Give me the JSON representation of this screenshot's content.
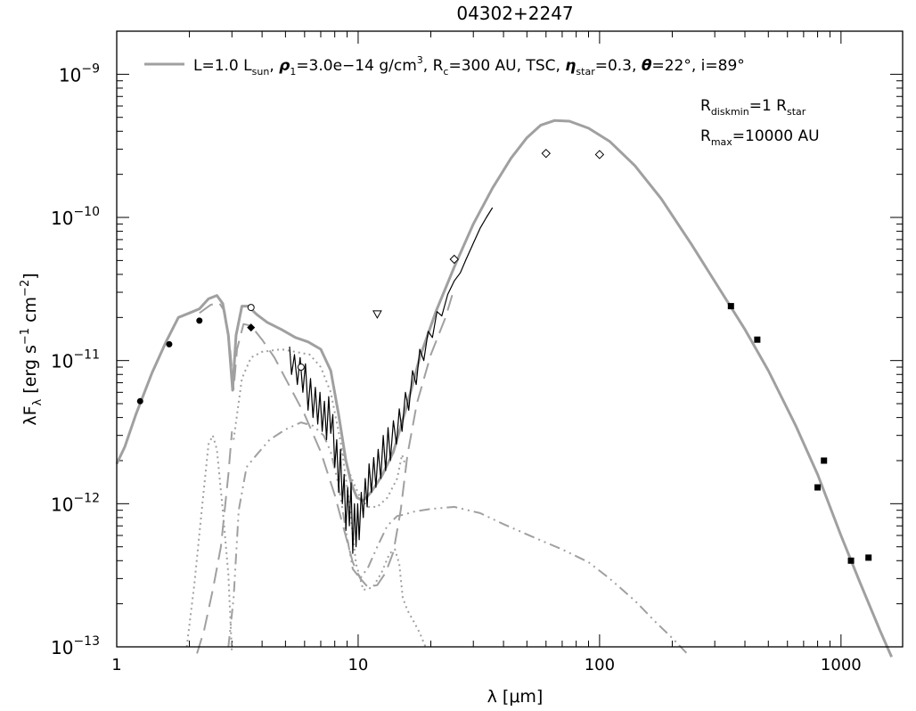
{
  "chart_data": {
    "type": "line",
    "title": "04302+2247",
    "xlabel": "λ [μm]",
    "ylabel": {
      "base": "λF",
      "sub": "λ",
      "rest": " [erg s",
      "sup1": "−1",
      "mid": " cm",
      "sup2": "−2",
      "end": "]"
    },
    "x_scale": "log",
    "y_scale": "log",
    "xlim": [
      1,
      1800
    ],
    "ylim": [
      1e-13,
      2e-09
    ],
    "x_ticks": [
      {
        "value": 1,
        "label": "1"
      },
      {
        "value": 10,
        "label": "10"
      },
      {
        "value": 100,
        "label": "100"
      },
      {
        "value": 1000,
        "label": "1000"
      }
    ],
    "y_ticks": [
      {
        "value": 1e-13,
        "mantissa": "10",
        "exp": "−13"
      },
      {
        "value": 1e-12,
        "mantissa": "10",
        "exp": "−12"
      },
      {
        "value": 1e-11,
        "mantissa": "10",
        "exp": "−11"
      },
      {
        "value": 1e-10,
        "mantissa": "10",
        "exp": "−10"
      },
      {
        "value": 1e-09,
        "mantissa": "10",
        "exp": "−9"
      }
    ],
    "legend": {
      "position": "top",
      "line_color": "#a0a0a0",
      "runs": [
        {
          "t": "L=1.0 L",
          "s": ""
        },
        {
          "t": "sun",
          "s": "sub"
        },
        {
          "t": ", ",
          "s": ""
        },
        {
          "t": "ρ",
          "s": "bi"
        },
        {
          "t": "1",
          "s": "sub"
        },
        {
          "t": "=3.0e−14 g/cm",
          "s": ""
        },
        {
          "t": "3",
          "s": "sup"
        },
        {
          "t": ", R",
          "s": ""
        },
        {
          "t": "c",
          "s": "sub"
        },
        {
          "t": "=300 AU, TSC, ",
          "s": ""
        },
        {
          "t": "η",
          "s": "bi"
        },
        {
          "t": "star",
          "s": "sub"
        },
        {
          "t": "=0.3, ",
          "s": ""
        },
        {
          "t": "θ",
          "s": "bi"
        },
        {
          "t": "=22°, i=89°",
          "s": ""
        }
      ]
    },
    "annotations": [
      {
        "base": "R",
        "sub": "diskmin",
        "rest": "=1 R",
        "sub2": "star"
      },
      {
        "base": "R",
        "sub": "max",
        "rest": "=10000 AU",
        "sub2": ""
      }
    ],
    "series": [
      {
        "style": "total-model",
        "color": "#a0a0a0",
        "points": [
          [
            1,
            1.9e-12
          ],
          [
            1.08,
            2.5e-12
          ],
          [
            1.2,
            4.2e-12
          ],
          [
            1.4,
            8.2e-12
          ],
          [
            1.6,
            1.35e-11
          ],
          [
            1.8,
            2e-11
          ],
          [
            2.0,
            2.15e-11
          ],
          [
            2.2,
            2.3e-11
          ],
          [
            2.4,
            2.7e-11
          ],
          [
            2.6,
            2.85e-11
          ],
          [
            2.75,
            2.5e-11
          ],
          [
            2.9,
            1.5e-11
          ],
          [
            3.02,
            6.2e-12
          ],
          [
            3.12,
            1.5e-11
          ],
          [
            3.3,
            2.4e-11
          ],
          [
            3.5,
            2.4e-11
          ],
          [
            3.8,
            2.1e-11
          ],
          [
            4.2,
            1.85e-11
          ],
          [
            4.8,
            1.65e-11
          ],
          [
            5.5,
            1.45e-11
          ],
          [
            6.2,
            1.35e-11
          ],
          [
            7.0,
            1.2e-11
          ],
          [
            7.7,
            8.5e-12
          ],
          [
            8.3,
            4.2e-12
          ],
          [
            8.9,
            2e-12
          ],
          [
            9.4,
            1.35e-12
          ],
          [
            9.9,
            1.1e-12
          ],
          [
            10.5,
            1.05e-12
          ],
          [
            11.3,
            1.2e-12
          ],
          [
            12.5,
            1.55e-12
          ],
          [
            14,
            2.3e-12
          ],
          [
            16,
            5e-12
          ],
          [
            18,
            1.05e-11
          ],
          [
            21,
            2.2e-11
          ],
          [
            25,
            4.5e-11
          ],
          [
            30,
            9e-11
          ],
          [
            36,
            1.6e-10
          ],
          [
            43,
            2.6e-10
          ],
          [
            50,
            3.6e-10
          ],
          [
            57,
            4.4e-10
          ],
          [
            65,
            4.75e-10
          ],
          [
            75,
            4.7e-10
          ],
          [
            90,
            4.2e-10
          ],
          [
            110,
            3.4e-10
          ],
          [
            140,
            2.3e-10
          ],
          [
            180,
            1.35e-10
          ],
          [
            240,
            6.5e-11
          ],
          [
            320,
            3e-11
          ],
          [
            400,
            1.65e-11
          ],
          [
            500,
            8.5e-12
          ],
          [
            650,
            3.5e-12
          ],
          [
            800,
            1.6e-12
          ],
          [
            1000,
            6e-13
          ],
          [
            1200,
            2.8e-13
          ],
          [
            1450,
            1.3e-13
          ],
          [
            1620,
            8.5e-14
          ]
        ]
      },
      {
        "style": "dashed",
        "color": "#a0a0a0",
        "points": [
          [
            2.2,
            2.15e-11
          ],
          [
            2.45,
            2.45e-11
          ],
          [
            2.65,
            2.55e-11
          ],
          [
            2.8,
            2.2e-11
          ],
          [
            2.95,
            1.2e-11
          ],
          [
            3.05,
            6.3e-12
          ],
          [
            3.15,
            1.2e-11
          ],
          [
            3.35,
            1.8e-11
          ],
          [
            3.6,
            1.75e-11
          ],
          [
            4.0,
            1.4e-11
          ],
          [
            4.5,
            1.05e-11
          ],
          [
            5.0,
            7.5e-12
          ],
          [
            6.0,
            4.2e-12
          ],
          [
            7.0,
            2.3e-12
          ],
          [
            8.0,
            1.15e-12
          ],
          [
            9.0,
            5.5e-13
          ],
          [
            9.5,
            3.9e-13
          ],
          [
            10.2,
            3e-13
          ],
          [
            11.0,
            2.6e-13
          ],
          [
            12.0,
            2.7e-13
          ],
          [
            13.0,
            3.3e-13
          ],
          [
            14.0,
            4.6e-13
          ],
          [
            15,
            9e-13
          ],
          [
            16,
            2.2e-12
          ],
          [
            17.5,
            5e-12
          ],
          [
            20,
            1.1e-11
          ],
          [
            23,
            2e-11
          ],
          [
            25,
            3.2e-11
          ]
        ]
      },
      {
        "style": "dashed",
        "color": "#a0a0a0",
        "points": [
          [
            2.15,
            9e-14
          ],
          [
            2.3,
            1.3e-13
          ],
          [
            2.5,
            2.5e-13
          ],
          [
            2.7,
            5e-13
          ],
          [
            2.9,
            1.6e-12
          ],
          [
            3.0,
            3.2e-12
          ]
        ]
      },
      {
        "style": "dotted",
        "color": "#a0a0a0",
        "points": [
          [
            1.95,
            1e-13
          ],
          [
            2.1,
            2.8e-13
          ],
          [
            2.25,
            9e-13
          ],
          [
            2.4,
            2.6e-12
          ],
          [
            2.5,
            3e-12
          ],
          [
            2.6,
            2.4e-12
          ],
          [
            2.75,
            9e-13
          ],
          [
            2.9,
            3.2e-13
          ],
          [
            3.0,
            9e-14
          ]
        ]
      },
      {
        "style": "dotted",
        "color": "#a0a0a0",
        "points": [
          [
            3.05,
            2.8e-12
          ],
          [
            3.3,
            7.5e-12
          ],
          [
            3.6,
            1.05e-11
          ],
          [
            4.0,
            1.15e-11
          ],
          [
            4.8,
            1.2e-11
          ],
          [
            5.5,
            1.15e-11
          ],
          [
            6.3,
            1.1e-11
          ],
          [
            7.0,
            9e-12
          ],
          [
            7.7,
            6e-12
          ],
          [
            8.5,
            2.6e-12
          ],
          [
            9.2,
            1e-12
          ],
          [
            9.8,
            3.8e-13
          ],
          [
            10.5,
            2.5e-13
          ],
          [
            11.5,
            2.6e-13
          ],
          [
            12.5,
            3.3e-13
          ],
          [
            13.5,
            4.5e-13
          ],
          [
            14.2,
            4.8e-13
          ],
          [
            14.8,
            3.8e-13
          ],
          [
            15.3,
            2.2e-13
          ],
          [
            16,
            1.8e-13
          ],
          [
            17,
            1.5e-13
          ],
          [
            18,
            1.25e-13
          ],
          [
            19,
            1e-13
          ]
        ]
      },
      {
        "style": "dotted",
        "color": "#a0a0a0",
        "points": [
          [
            8.5,
            2.4e-12
          ],
          [
            9.4,
            1.5e-12
          ],
          [
            10.2,
            1.1e-12
          ],
          [
            11,
            9.5e-13
          ],
          [
            12,
            9.5e-13
          ],
          [
            13.2,
            1.1e-12
          ],
          [
            14.5,
            1.5e-12
          ],
          [
            15.2,
            2.2e-12
          ],
          [
            15.8,
            1.8e-12
          ]
        ]
      },
      {
        "style": "dashdotdot",
        "color": "#a0a0a0",
        "points": [
          [
            2.9,
            1e-13
          ],
          [
            3.05,
            2.2e-13
          ],
          [
            3.2,
            9e-13
          ],
          [
            3.45,
            1.8e-12
          ],
          [
            3.8,
            2.2e-12
          ],
          [
            4.3,
            2.8e-12
          ],
          [
            5.0,
            3.3e-12
          ],
          [
            5.8,
            3.7e-12
          ],
          [
            6.5,
            3.5e-12
          ],
          [
            7.2,
            3e-12
          ],
          [
            7.7,
            2.3e-12
          ],
          [
            8.3,
            1.35e-12
          ],
          [
            8.9,
            6.5e-13
          ],
          [
            9.5,
            3.5e-13
          ],
          [
            10.2,
            3e-13
          ],
          [
            11,
            3.6e-13
          ],
          [
            12,
            5e-13
          ],
          [
            13.2,
            7e-13
          ],
          [
            14.5,
            8.2e-13
          ],
          [
            15.5,
            8.4e-13
          ],
          [
            17,
            8.8e-13
          ],
          [
            20,
            9.2e-13
          ],
          [
            25,
            9.5e-13
          ],
          [
            32,
            8.6e-13
          ],
          [
            40,
            7.2e-13
          ],
          [
            55,
            5.7e-13
          ],
          [
            70,
            4.8e-13
          ],
          [
            90,
            3.9e-13
          ],
          [
            110,
            3e-13
          ],
          [
            140,
            2.1e-13
          ],
          [
            170,
            1.5e-13
          ],
          [
            200,
            1.15e-13
          ],
          [
            230,
            9e-14
          ]
        ]
      },
      {
        "style": "spectrum",
        "color": "#000000",
        "points": [
          [
            5.2,
            1.25e-11
          ],
          [
            5.3,
            8e-12
          ],
          [
            5.45,
            1.1e-11
          ],
          [
            5.6,
            6.8e-12
          ],
          [
            5.75,
            1.05e-11
          ],
          [
            5.9,
            6e-12
          ],
          [
            6.05,
            9.5e-12
          ],
          [
            6.2,
            4.5e-12
          ],
          [
            6.35,
            7.5e-12
          ],
          [
            6.5,
            4e-12
          ],
          [
            6.65,
            6.5e-12
          ],
          [
            6.8,
            3.6e-12
          ],
          [
            6.95,
            6e-12
          ],
          [
            7.1,
            3.2e-12
          ],
          [
            7.25,
            5.2e-12
          ],
          [
            7.4,
            2.8e-12
          ],
          [
            7.55,
            5.6e-12
          ],
          [
            7.7,
            3.1e-12
          ],
          [
            7.85,
            4.2e-12
          ],
          [
            8.0,
            1.8e-12
          ],
          [
            8.15,
            2.8e-12
          ],
          [
            8.3,
            1.2e-12
          ],
          [
            8.45,
            2.4e-12
          ],
          [
            8.6,
            1e-12
          ],
          [
            8.75,
            1.6e-12
          ],
          [
            8.9,
            6.5e-13
          ],
          [
            9.05,
            1.3e-12
          ],
          [
            9.2,
            7e-13
          ],
          [
            9.35,
            1.4e-12
          ],
          [
            9.5,
            4.5e-13
          ],
          [
            9.65,
            1e-12
          ],
          [
            9.8,
            5e-13
          ],
          [
            9.95,
            1e-12
          ],
          [
            10.1,
            5.6e-13
          ],
          [
            10.3,
            1.2e-12
          ],
          [
            10.5,
            8e-13
          ],
          [
            10.7,
            1.5e-12
          ],
          [
            10.9,
            9.5e-13
          ],
          [
            11.1,
            1.9e-12
          ],
          [
            11.35,
            1.2e-12
          ],
          [
            11.6,
            2.1e-12
          ],
          [
            11.85,
            1.3e-12
          ],
          [
            12.1,
            2.4e-12
          ],
          [
            12.4,
            1.5e-12
          ],
          [
            12.7,
            3e-12
          ],
          [
            13.0,
            1.7e-12
          ],
          [
            13.3,
            3.4e-12
          ],
          [
            13.6,
            2e-12
          ],
          [
            14.0,
            3.8e-12
          ],
          [
            14.4,
            2.6e-12
          ],
          [
            14.8,
            4.6e-12
          ],
          [
            15.2,
            3.2e-12
          ],
          [
            15.7,
            6e-12
          ],
          [
            16.2,
            4.5e-12
          ],
          [
            16.8,
            8.5e-12
          ],
          [
            17.4,
            6.8e-12
          ],
          [
            18.0,
            1.2e-11
          ],
          [
            18.7,
            1e-11
          ],
          [
            19.5,
            1.6e-11
          ],
          [
            20.3,
            1.45e-11
          ],
          [
            21.2,
            2.2e-11
          ],
          [
            22.2,
            2.05e-11
          ],
          [
            23.5,
            2.9e-11
          ],
          [
            25,
            3.6e-11
          ],
          [
            26.5,
            4.1e-11
          ],
          [
            28,
            5.1e-11
          ],
          [
            30,
            6.6e-11
          ],
          [
            32,
            8.4e-11
          ],
          [
            34,
            1e-10
          ],
          [
            36,
            1.17e-10
          ]
        ]
      }
    ],
    "markers": [
      {
        "shape": "filled-circle",
        "points": [
          [
            1.25,
            5.2e-12
          ],
          [
            1.65,
            1.3e-11
          ],
          [
            2.2,
            1.9e-11
          ]
        ]
      },
      {
        "shape": "open-circle",
        "points": [
          [
            3.6,
            2.35e-11
          ],
          [
            5.8,
            9e-12
          ]
        ]
      },
      {
        "shape": "filled-diamond",
        "points": [
          [
            3.6,
            1.7e-11
          ]
        ]
      },
      {
        "shape": "open-triangle-down",
        "points": [
          [
            12,
            2.1e-11
          ]
        ]
      },
      {
        "shape": "open-diamond",
        "points": [
          [
            25,
            5.1e-11
          ],
          [
            60,
            2.8e-10
          ],
          [
            100,
            2.75e-10
          ]
        ]
      },
      {
        "shape": "filled-square",
        "points": [
          [
            350,
            2.4e-11
          ],
          [
            450,
            1.4e-11
          ],
          [
            800,
            1.3e-12
          ],
          [
            850,
            2e-12
          ],
          [
            1100,
            4e-13
          ],
          [
            1300,
            4.2e-13
          ]
        ]
      }
    ]
  }
}
